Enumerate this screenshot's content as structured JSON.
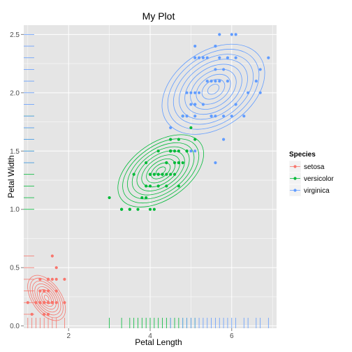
{
  "chart_data": {
    "type": "scatter",
    "title": "My Plot",
    "xlabel": "Petal Length",
    "ylabel": "Petal Width",
    "xlim": [
      0.9,
      7.1
    ],
    "ylim": [
      -0.02,
      2.58
    ],
    "x_ticks": [
      2,
      4,
      6
    ],
    "x_tick_labels": [
      "2",
      "4",
      "6"
    ],
    "y_ticks": [
      0.0,
      0.5,
      1.0,
      1.5,
      2.0,
      2.5
    ],
    "y_tick_labels": [
      "0.0",
      "0.5",
      "1.0",
      "1.5",
      "2.0",
      "2.5"
    ],
    "grid": true,
    "panel_background": "#e5e5e5",
    "overlays": [
      "density2d-contours",
      "rug"
    ],
    "legend": {
      "title": "Species",
      "position": "right"
    },
    "series": [
      {
        "name": "setosa",
        "color": "#f8766d",
        "density_center": [
          1.46,
          0.24
        ],
        "density_spread": [
          0.17,
          0.1
        ],
        "x": [
          1.4,
          1.4,
          1.3,
          1.5,
          1.4,
          1.7,
          1.4,
          1.5,
          1.4,
          1.5,
          1.5,
          1.6,
          1.4,
          1.1,
          1.2,
          1.5,
          1.3,
          1.4,
          1.7,
          1.5,
          1.7,
          1.5,
          1.0,
          1.7,
          1.9,
          1.6,
          1.6,
          1.5,
          1.4,
          1.6,
          1.6,
          1.5,
          1.5,
          1.4,
          1.5,
          1.2,
          1.3,
          1.4,
          1.3,
          1.5,
          1.3,
          1.3,
          1.3,
          1.6,
          1.9,
          1.4,
          1.6,
          1.4,
          1.5,
          1.4
        ],
        "y": [
          0.2,
          0.2,
          0.2,
          0.2,
          0.2,
          0.4,
          0.3,
          0.2,
          0.2,
          0.1,
          0.2,
          0.2,
          0.1,
          0.1,
          0.2,
          0.4,
          0.4,
          0.3,
          0.3,
          0.3,
          0.2,
          0.4,
          0.2,
          0.5,
          0.2,
          0.2,
          0.4,
          0.2,
          0.2,
          0.2,
          0.2,
          0.4,
          0.1,
          0.2,
          0.2,
          0.2,
          0.2,
          0.1,
          0.2,
          0.2,
          0.3,
          0.3,
          0.2,
          0.6,
          0.4,
          0.3,
          0.2,
          0.2,
          0.2,
          0.2
        ]
      },
      {
        "name": "versicolor",
        "color": "#00ba38",
        "density_center": [
          4.26,
          1.33
        ],
        "density_spread": [
          0.47,
          0.2
        ],
        "x": [
          4.7,
          4.5,
          4.9,
          4.0,
          4.6,
          4.5,
          4.7,
          3.3,
          4.6,
          3.9,
          3.5,
          4.2,
          4.0,
          4.7,
          3.6,
          4.4,
          4.5,
          4.1,
          4.5,
          3.9,
          4.8,
          4.0,
          4.9,
          4.7,
          4.3,
          4.4,
          4.8,
          5.0,
          4.5,
          3.5,
          3.8,
          3.7,
          3.9,
          5.1,
          4.5,
          4.5,
          4.7,
          4.4,
          4.1,
          4.0,
          4.4,
          4.6,
          4.0,
          3.3,
          4.2,
          4.2,
          4.2,
          4.3,
          3.0,
          4.1
        ],
        "y": [
          1.4,
          1.5,
          1.5,
          1.3,
          1.5,
          1.3,
          1.6,
          1.0,
          1.3,
          1.4,
          1.0,
          1.5,
          1.0,
          1.4,
          1.3,
          1.4,
          1.5,
          1.0,
          1.5,
          1.1,
          1.8,
          1.3,
          1.5,
          1.2,
          1.3,
          1.4,
          1.4,
          1.7,
          1.5,
          1.0,
          1.1,
          1.0,
          1.2,
          1.6,
          1.5,
          1.6,
          1.5,
          1.3,
          1.3,
          1.3,
          1.2,
          1.4,
          1.2,
          1.0,
          1.3,
          1.2,
          1.3,
          1.3,
          1.1,
          1.3
        ]
      },
      {
        "name": "virginica",
        "color": "#619cff",
        "density_center": [
          5.55,
          2.03
        ],
        "density_spread": [
          0.55,
          0.27
        ],
        "x": [
          6.0,
          5.1,
          5.9,
          5.6,
          5.8,
          6.6,
          4.5,
          6.3,
          5.8,
          6.1,
          5.1,
          5.3,
          5.5,
          5.0,
          5.1,
          5.3,
          5.5,
          6.7,
          6.9,
          5.0,
          5.7,
          4.9,
          6.7,
          4.9,
          5.7,
          6.0,
          4.8,
          4.9,
          5.6,
          5.8,
          6.1,
          6.4,
          5.6,
          5.1,
          5.6,
          6.1,
          5.6,
          5.5,
          4.8,
          5.4,
          5.6,
          5.1,
          5.1,
          5.9,
          5.7,
          5.2,
          5.0,
          5.2,
          5.4,
          5.1
        ],
        "y": [
          2.5,
          1.9,
          2.1,
          1.8,
          2.2,
          2.1,
          1.7,
          1.8,
          1.8,
          2.5,
          2.0,
          1.9,
          2.1,
          2.0,
          2.4,
          2.3,
          1.8,
          2.2,
          2.3,
          1.5,
          2.3,
          2.0,
          2.0,
          1.8,
          2.1,
          1.8,
          1.8,
          1.8,
          2.1,
          1.6,
          1.9,
          2.0,
          2.2,
          1.5,
          1.4,
          2.3,
          2.4,
          1.8,
          1.8,
          2.1,
          2.4,
          2.3,
          1.9,
          2.3,
          2.5,
          2.3,
          1.9,
          2.0,
          2.3,
          1.8
        ]
      }
    ]
  }
}
